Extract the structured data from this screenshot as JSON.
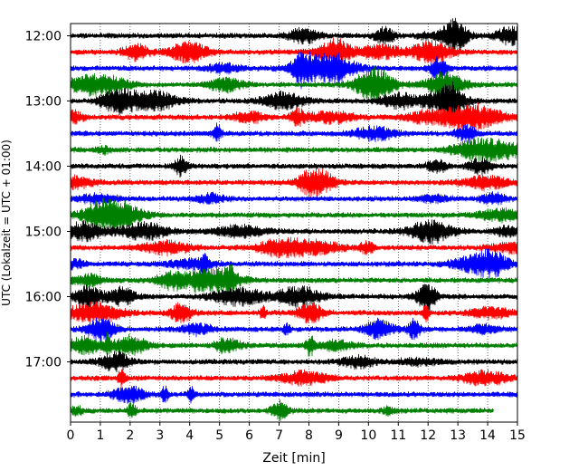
{
  "chart_data": {
    "type": "line",
    "title": "",
    "xlabel": "Zeit  [min]",
    "ylabel": "UTC (Lokalzeit = UTC + 01:00)",
    "xlim": [
      0,
      15
    ],
    "x_ticks": [
      "0",
      "1",
      "2",
      "3",
      "4",
      "5",
      "6",
      "7",
      "8",
      "9",
      "10",
      "11",
      "12",
      "13",
      "14",
      "15"
    ],
    "y_tick_labels": [
      "12:00",
      "13:00",
      "14:00",
      "15:00",
      "16:00",
      "17:00"
    ],
    "trace_interval_minutes": 15,
    "first_trace_utc": "12:00",
    "last_trace_utc": "17:45",
    "last_trace_end_minute": 14.2,
    "vertical_grid": "dotted",
    "color_cycle": [
      "#000000",
      "#ff0000",
      "#0000ff",
      "#008000"
    ],
    "traces": [
      {
        "start": "12:00",
        "color": "#000000"
      },
      {
        "start": "12:15",
        "color": "#ff0000"
      },
      {
        "start": "12:30",
        "color": "#0000ff"
      },
      {
        "start": "12:45",
        "color": "#008000"
      },
      {
        "start": "13:00",
        "color": "#000000"
      },
      {
        "start": "13:15",
        "color": "#ff0000"
      },
      {
        "start": "13:30",
        "color": "#0000ff"
      },
      {
        "start": "13:45",
        "color": "#008000"
      },
      {
        "start": "14:00",
        "color": "#000000"
      },
      {
        "start": "14:15",
        "color": "#ff0000"
      },
      {
        "start": "14:30",
        "color": "#0000ff"
      },
      {
        "start": "14:45",
        "color": "#008000"
      },
      {
        "start": "15:00",
        "color": "#000000"
      },
      {
        "start": "15:15",
        "color": "#ff0000"
      },
      {
        "start": "15:30",
        "color": "#0000ff"
      },
      {
        "start": "15:45",
        "color": "#008000"
      },
      {
        "start": "16:00",
        "color": "#000000"
      },
      {
        "start": "16:15",
        "color": "#ff0000"
      },
      {
        "start": "16:30",
        "color": "#0000ff"
      },
      {
        "start": "16:45",
        "color": "#008000"
      },
      {
        "start": "17:00",
        "color": "#000000"
      },
      {
        "start": "17:15",
        "color": "#ff0000"
      },
      {
        "start": "17:30",
        "color": "#0000ff"
      },
      {
        "start": "17:45",
        "color": "#008000"
      }
    ]
  }
}
